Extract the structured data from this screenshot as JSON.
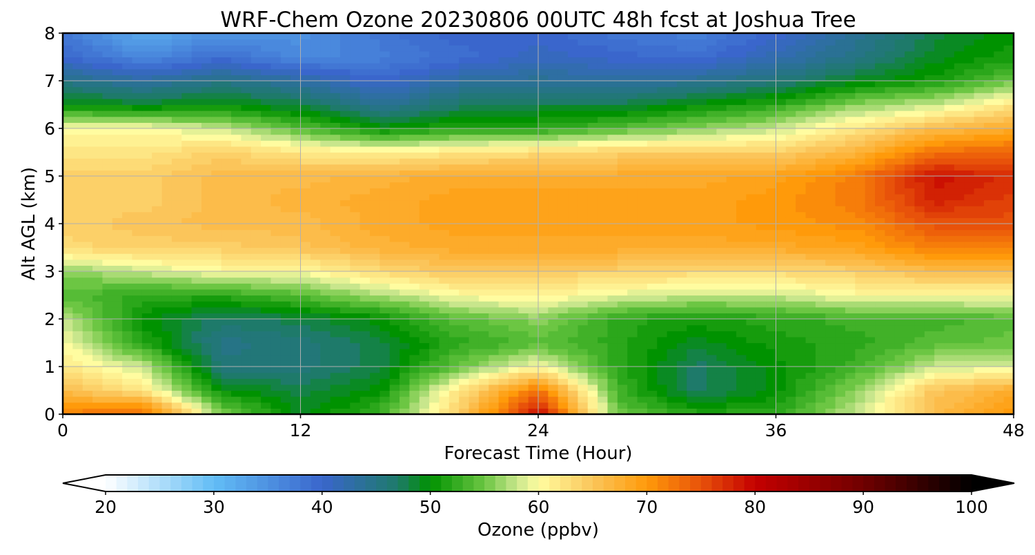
{
  "chart_data": {
    "type": "heatmap",
    "title": "WRF-Chem Ozone  20230806 00UTC 48h fcst at Joshua Tree",
    "xlabel": "Forecast Time (Hour)",
    "ylabel": "Alt AGL (km)",
    "xlim": [
      0,
      48
    ],
    "ylim": [
      0,
      8
    ],
    "xticks": [
      0,
      12,
      24,
      36,
      48
    ],
    "yticks": [
      0,
      1,
      2,
      3,
      4,
      5,
      6,
      7,
      8
    ],
    "grid": true,
    "x": [
      0,
      4,
      8,
      12,
      16,
      20,
      24,
      28,
      32,
      36,
      40,
      44,
      48
    ],
    "y": [
      0,
      0.5,
      1,
      1.5,
      2,
      2.5,
      3,
      3.5,
      4,
      4.5,
      5,
      5.5,
      6,
      6.5,
      7,
      7.5,
      8
    ],
    "z": [
      [
        72,
        74,
        56,
        49,
        53,
        64,
        80,
        55,
        52,
        52,
        58,
        66,
        70
      ],
      [
        66,
        62,
        50,
        48,
        50,
        62,
        73,
        53,
        47,
        50,
        56,
        65,
        68
      ],
      [
        62,
        58,
        46,
        46,
        48,
        55,
        60,
        52,
        47,
        50,
        53,
        58,
        59
      ],
      [
        60,
        52,
        45,
        46,
        48,
        52,
        54,
        52,
        49,
        51,
        52,
        54,
        55
      ],
      [
        58,
        50,
        47,
        48,
        50,
        54,
        56,
        52,
        51,
        52,
        53,
        53,
        54
      ],
      [
        54,
        52,
        52,
        54,
        57,
        60,
        61,
        59,
        58,
        58,
        60,
        60,
        60
      ],
      [
        56,
        58,
        60,
        60,
        63,
        65,
        64,
        64,
        63,
        63,
        64,
        66,
        66
      ],
      [
        63,
        64,
        64,
        65,
        67,
        68,
        68,
        68,
        68,
        68,
        69,
        72,
        72
      ],
      [
        64,
        65,
        66,
        66,
        68,
        69,
        69,
        69,
        69,
        70,
        71,
        75,
        75
      ],
      [
        64,
        64,
        66,
        67,
        68,
        69,
        69,
        69,
        69,
        70,
        72,
        78,
        76
      ],
      [
        64,
        64,
        66,
        66,
        67,
        68,
        68,
        68,
        68,
        69,
        72,
        79,
        77
      ],
      [
        62,
        62,
        64,
        62,
        61,
        62,
        63,
        64,
        64,
        64,
        67,
        73,
        74
      ],
      [
        60,
        60,
        58,
        54,
        50,
        52,
        52,
        54,
        56,
        58,
        62,
        66,
        68
      ],
      [
        50,
        49,
        50,
        48,
        44,
        47,
        48,
        48,
        50,
        52,
        56,
        58,
        62
      ],
      [
        45,
        43,
        45,
        43,
        40,
        43,
        44,
        43,
        44,
        46,
        49,
        51,
        55
      ],
      [
        40,
        36,
        39,
        36,
        37,
        39,
        41,
        40,
        39,
        42,
        45,
        49,
        51
      ],
      [
        38,
        32,
        35,
        35,
        38,
        40,
        40,
        38,
        37,
        40,
        44,
        48,
        50
      ]
    ],
    "colorbar": {
      "label": "Ozone  (ppbv)",
      "min": 20,
      "max": 100,
      "ticks": [
        20,
        30,
        40,
        50,
        60,
        70,
        80,
        90,
        100
      ],
      "extend": "both",
      "colors": [
        {
          "v": 20,
          "c": "#ffffff"
        },
        {
          "v": 30,
          "c": "#62bdf6"
        },
        {
          "v": 40,
          "c": "#3a66cc"
        },
        {
          "v": 47,
          "c": "#1e7a6a"
        },
        {
          "v": 50,
          "c": "#009200"
        },
        {
          "v": 55,
          "c": "#6cc643"
        },
        {
          "v": 58,
          "c": "#c8e68c"
        },
        {
          "v": 60,
          "c": "#fffca0"
        },
        {
          "v": 65,
          "c": "#fbc55a"
        },
        {
          "v": 70,
          "c": "#ff9a0a"
        },
        {
          "v": 75,
          "c": "#e8520a"
        },
        {
          "v": 80,
          "c": "#c40000"
        },
        {
          "v": 90,
          "c": "#700000"
        },
        {
          "v": 100,
          "c": "#000000"
        }
      ]
    }
  }
}
